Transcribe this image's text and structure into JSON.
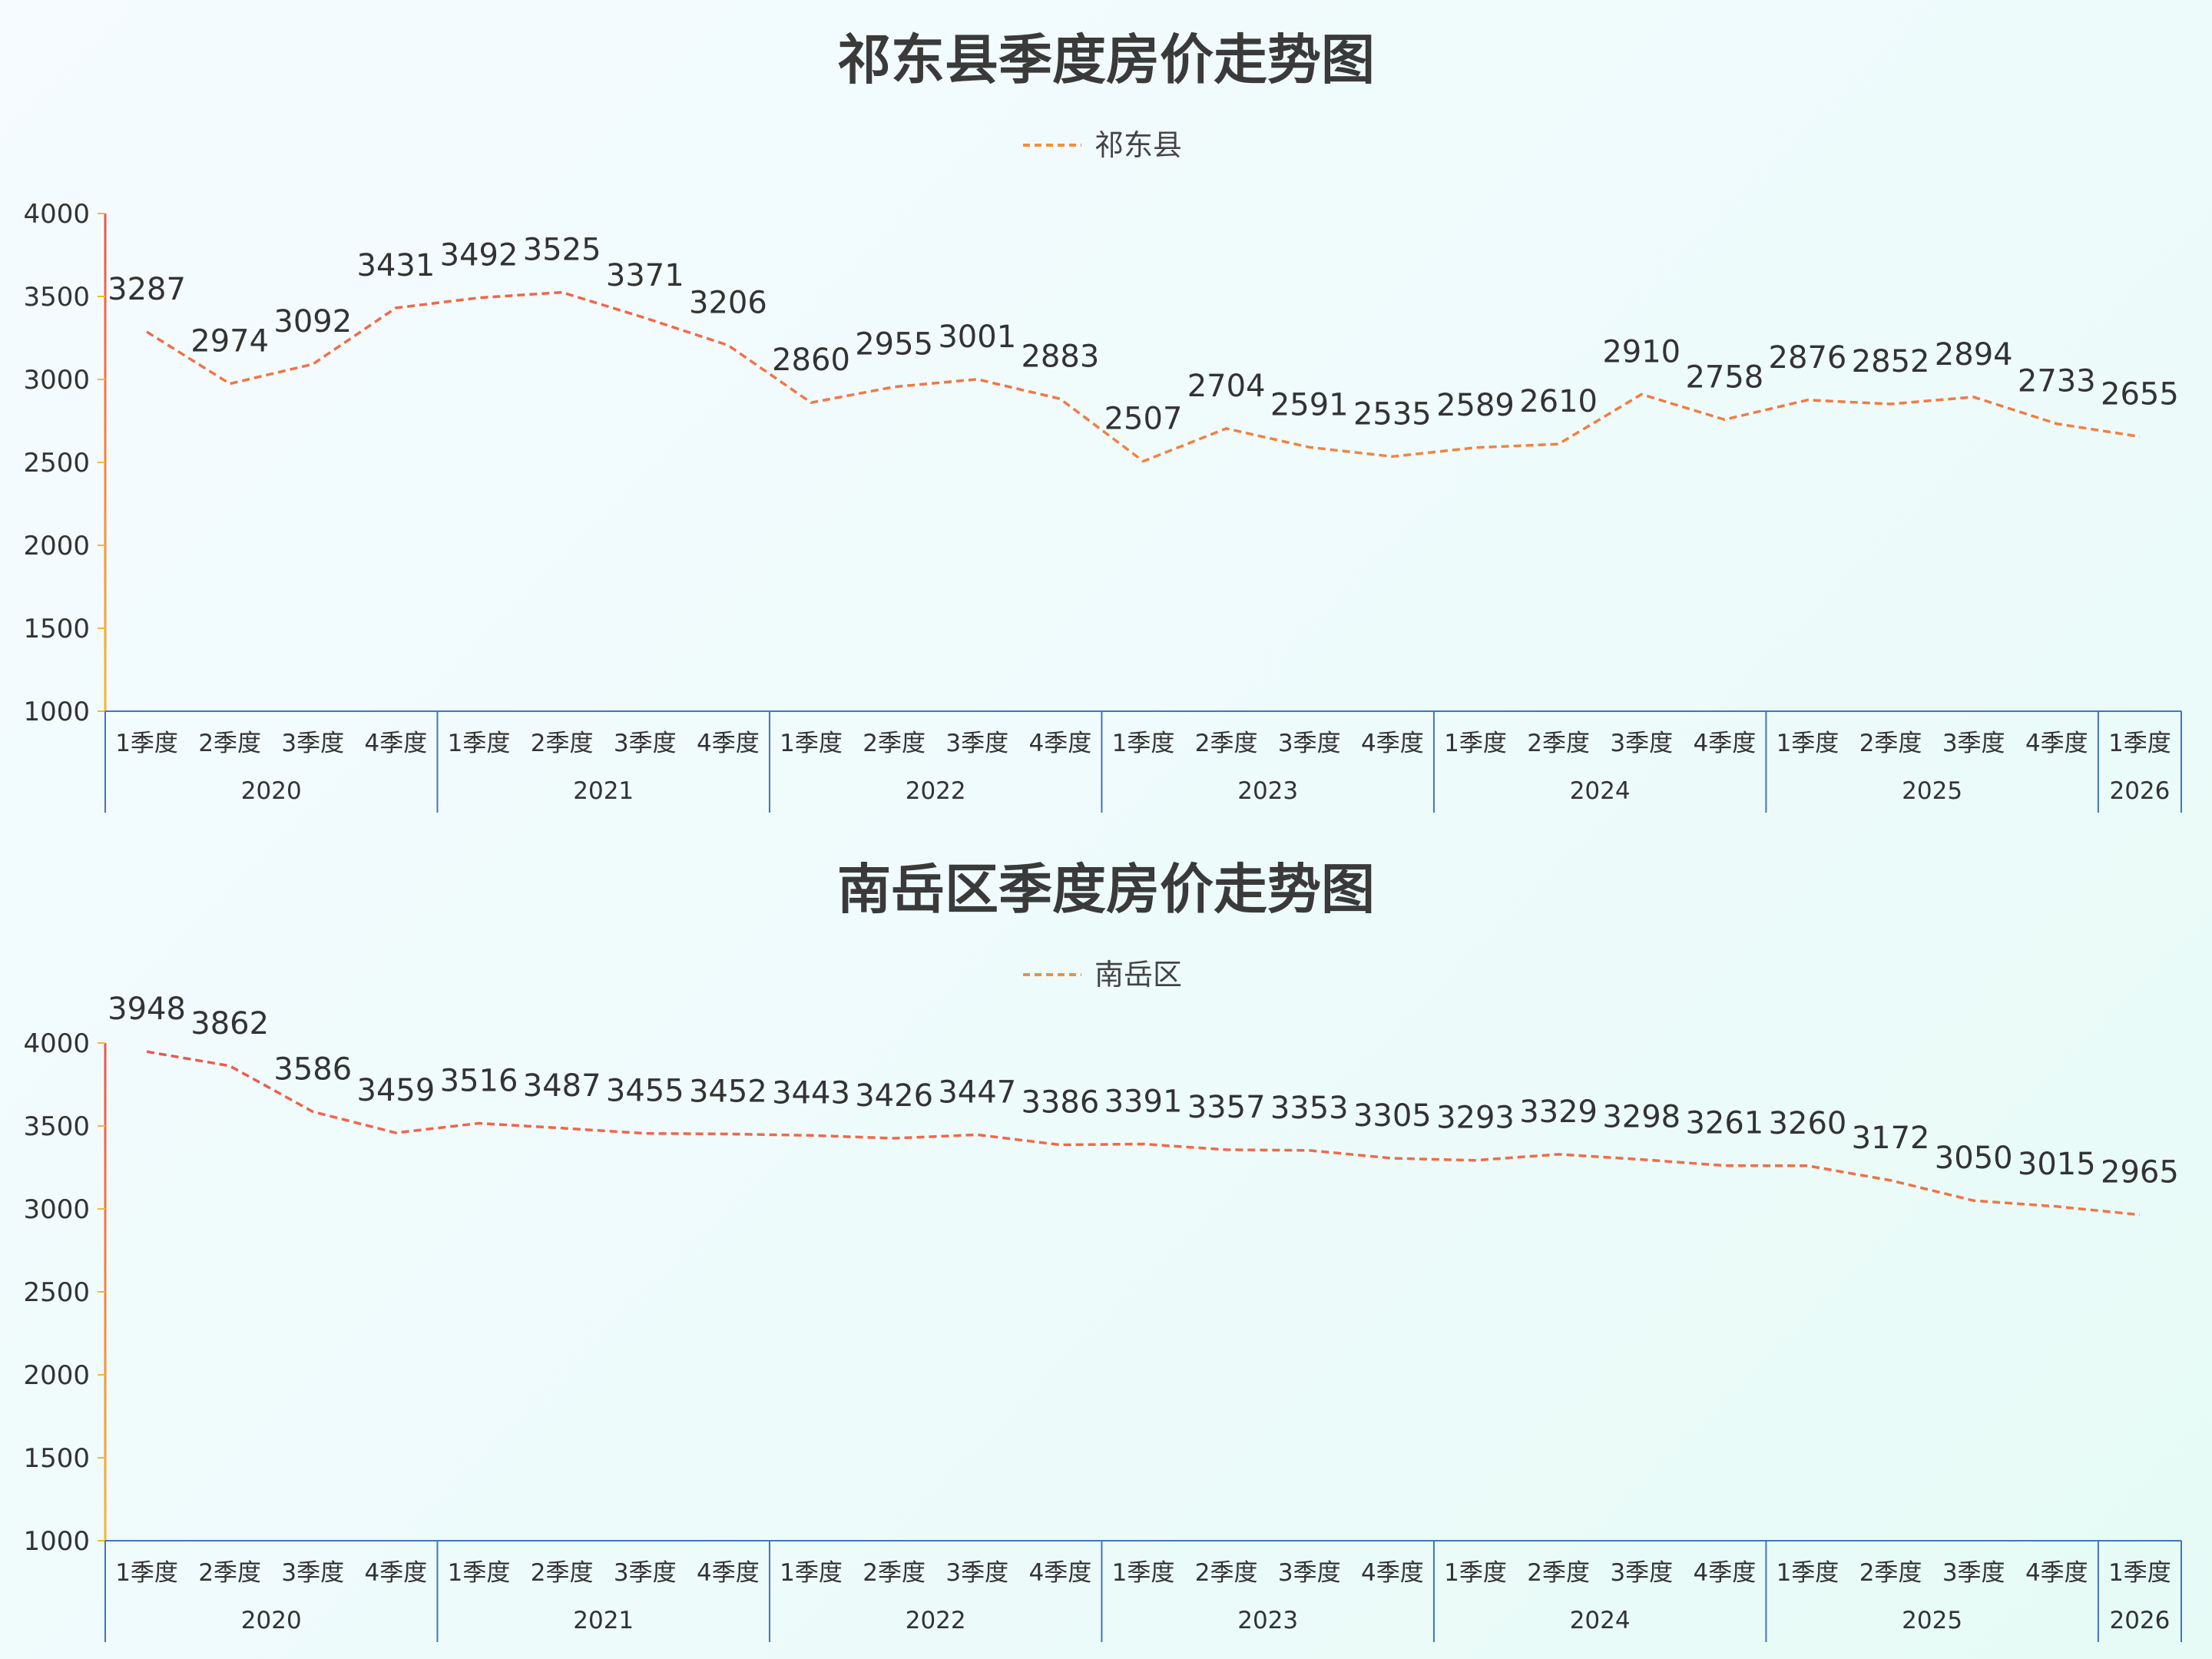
{
  "chart_data": [
    {
      "type": "line",
      "title": "祁东县季度房价走势图",
      "legend": "祁东县",
      "ylim": [
        1000,
        4000
      ],
      "yticks": [
        "1000",
        "1500",
        "2000",
        "2500",
        "3000",
        "3500",
        "4000"
      ],
      "quarter_labels": [
        "1季度",
        "2季度",
        "3季度",
        "4季度",
        "1季度",
        "2季度",
        "3季度",
        "4季度",
        "1季度",
        "2季度",
        "3季度",
        "4季度",
        "1季度",
        "2季度",
        "3季度",
        "4季度",
        "1季度",
        "2季度",
        "3季度",
        "4季度",
        "1季度",
        "2季度",
        "3季度",
        "4季度",
        "1季度"
      ],
      "years": [
        {
          "label": "2020",
          "quarters": 4
        },
        {
          "label": "2021",
          "quarters": 4
        },
        {
          "label": "2022",
          "quarters": 4
        },
        {
          "label": "2023",
          "quarters": 4
        },
        {
          "label": "2024",
          "quarters": 4
        },
        {
          "label": "2025",
          "quarters": 4
        },
        {
          "label": "2026",
          "quarters": 1
        }
      ],
      "series": [
        {
          "name": "祁东县",
          "values": [
            3287,
            2974,
            3092,
            3431,
            3492,
            3525,
            3371,
            3206,
            2860,
            2955,
            3001,
            2883,
            2507,
            2704,
            2591,
            2535,
            2589,
            2610,
            2910,
            2758,
            2876,
            2852,
            2894,
            2733,
            2655
          ]
        }
      ],
      "colors": {
        "line_high": "#f0544f",
        "line_low": "#f5b82e",
        "axis": "#4472c4",
        "legend": "#f0903a"
      }
    },
    {
      "type": "line",
      "title": "南岳区季度房价走势图",
      "legend": "南岳区",
      "ylim": [
        1000,
        4000
      ],
      "yticks": [
        "1000",
        "1500",
        "2000",
        "2500",
        "3000",
        "3500",
        "4000"
      ],
      "quarter_labels": [
        "1季度",
        "2季度",
        "3季度",
        "4季度",
        "1季度",
        "2季度",
        "3季度",
        "4季度",
        "1季度",
        "2季度",
        "3季度",
        "4季度",
        "1季度",
        "2季度",
        "3季度",
        "4季度",
        "1季度",
        "2季度",
        "3季度",
        "4季度",
        "1季度",
        "2季度",
        "3季度",
        "4季度",
        "1季度"
      ],
      "years": [
        {
          "label": "2020",
          "quarters": 4
        },
        {
          "label": "2021",
          "quarters": 4
        },
        {
          "label": "2022",
          "quarters": 4
        },
        {
          "label": "2023",
          "quarters": 4
        },
        {
          "label": "2024",
          "quarters": 4
        },
        {
          "label": "2025",
          "quarters": 4
        },
        {
          "label": "2026",
          "quarters": 1
        }
      ],
      "series": [
        {
          "name": "南岳区",
          "values": [
            3948,
            3862,
            3586,
            3459,
            3516,
            3487,
            3455,
            3452,
            3443,
            3426,
            3447,
            3386,
            3391,
            3357,
            3353,
            3305,
            3293,
            3329,
            3298,
            3261,
            3260,
            3172,
            3050,
            3015,
            2965
          ]
        }
      ],
      "colors": {
        "line_high": "#f0544f",
        "line_low": "#f5b82e",
        "axis": "#4472c4",
        "legend": "#f0903a"
      }
    }
  ]
}
